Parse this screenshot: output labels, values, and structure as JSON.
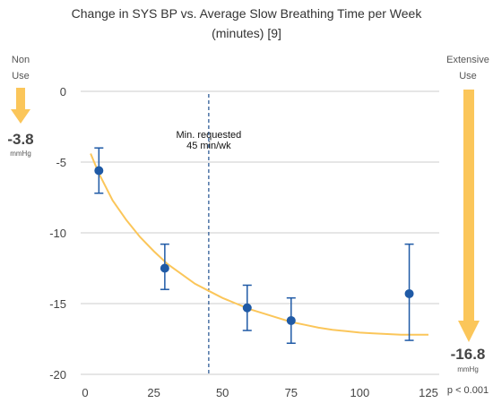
{
  "title_line1": "Change in SYS BP vs. Average Slow Breathing Time per Week",
  "title_line2": "(minutes) [9]",
  "left_panel": {
    "label_line1": "Non",
    "label_line2": "Use",
    "value": "-3.8",
    "unit": "mmHg"
  },
  "right_panel": {
    "label_line1": "Extensive",
    "label_line2": "Use",
    "value": "-16.8",
    "unit": "mmHg"
  },
  "p_value": "p < 0.001",
  "annotation": {
    "line1": "Min. requested",
    "line2": "45 min/wk"
  },
  "colors": {
    "points": "#1f5aa6",
    "curve": "#fbc65a",
    "arrow": "#fbc65a",
    "grid": "#cccccc",
    "vline": "#1f4f8f"
  },
  "chart_data": {
    "type": "scatter",
    "title": "Change in SYS BP vs. Average Slow Breathing Time per Week (minutes) [9]",
    "xlim": [
      0,
      125
    ],
    "ylim": [
      -20,
      0
    ],
    "x_ticks": [
      0,
      25,
      50,
      75,
      100,
      125
    ],
    "y_ticks": [
      0,
      -5,
      -10,
      -15,
      -20
    ],
    "grid": "horizontal",
    "points": [
      {
        "x": 5,
        "y": -5.6,
        "err_low": -7.2,
        "err_high": -4.0
      },
      {
        "x": 29,
        "y": -12.5,
        "err_low": -14.0,
        "err_high": -10.8
      },
      {
        "x": 59,
        "y": -15.3,
        "err_low": -16.9,
        "err_high": -13.7
      },
      {
        "x": 75,
        "y": -16.2,
        "err_low": -17.8,
        "err_high": -14.6
      },
      {
        "x": 118,
        "y": -14.3,
        "err_low": -17.6,
        "err_high": -10.8
      }
    ],
    "fit_curve": {
      "name": "fit",
      "x": [
        2,
        5,
        10,
        15,
        20,
        25,
        30,
        35,
        40,
        45,
        50,
        55,
        60,
        65,
        70,
        75,
        80,
        85,
        90,
        95,
        100,
        105,
        110,
        115,
        120,
        125
      ],
      "y": [
        -4.4,
        -5.8,
        -7.7,
        -9.1,
        -10.3,
        -11.3,
        -12.2,
        -12.9,
        -13.6,
        -14.1,
        -14.6,
        -15.0,
        -15.4,
        -15.7,
        -16.0,
        -16.3,
        -16.5,
        -16.7,
        -16.85,
        -16.95,
        -17.05,
        -17.1,
        -17.15,
        -17.2,
        -17.2,
        -17.2
      ]
    },
    "reference_line": {
      "x": 45
    }
  }
}
